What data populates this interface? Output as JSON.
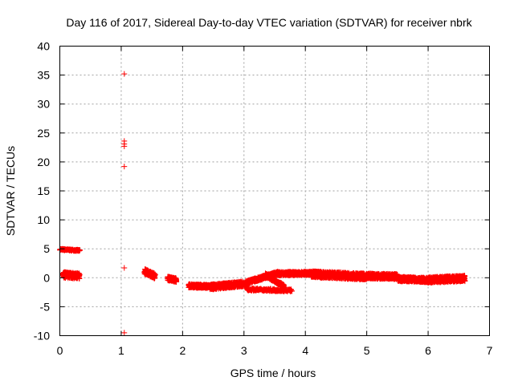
{
  "chart_data": {
    "type": "scatter",
    "title": "Day 116 of 2017, Sidereal Day-to-day VTEC variation (SDTVAR) for receiver nbrk",
    "xlabel": "GPS time / hours",
    "ylabel": "SDTVAR / TECUs",
    "xlim": [
      0,
      7
    ],
    "ylim": [
      -10,
      40
    ],
    "xticks": [
      0,
      1,
      2,
      3,
      4,
      5,
      6,
      7
    ],
    "yticks": [
      -10,
      -5,
      0,
      5,
      10,
      15,
      20,
      25,
      30,
      35,
      40
    ],
    "grid": true,
    "marker": "+",
    "color": "#ff0000",
    "outliers": [
      {
        "x": 1.05,
        "y": 35.2
      },
      {
        "x": 1.05,
        "y": 23.6
      },
      {
        "x": 1.05,
        "y": 23.1
      },
      {
        "x": 1.05,
        "y": 22.7
      },
      {
        "x": 1.05,
        "y": 19.2
      },
      {
        "x": 1.05,
        "y": 1.7
      },
      {
        "x": 1.05,
        "y": -9.5
      }
    ],
    "dense_segments": [
      {
        "x_start": 0.0,
        "x_end": 0.33,
        "y_start": 4.9,
        "y_end": 4.7,
        "spread": 0.25
      },
      {
        "x_start": 0.05,
        "x_end": 0.32,
        "y_start": 0.5,
        "y_end": 0.3,
        "spread": 1.0
      },
      {
        "x_start": 1.38,
        "x_end": 1.55,
        "y_start": 1.1,
        "y_end": 0.3,
        "spread": 0.9
      },
      {
        "x_start": 1.76,
        "x_end": 1.9,
        "y_start": -0.1,
        "y_end": -0.4,
        "spread": 0.7
      },
      {
        "x_start": 2.1,
        "x_end": 2.45,
        "y_start": -1.4,
        "y_end": -1.5,
        "spread": 0.6
      },
      {
        "x_start": 2.45,
        "x_end": 3.05,
        "y_start": -1.6,
        "y_end": -1.0,
        "spread": 0.9
      },
      {
        "x_start": 3.05,
        "x_end": 3.55,
        "y_start": -0.8,
        "y_end": 0.8,
        "spread": 0.6
      },
      {
        "x_start": 3.35,
        "x_end": 3.65,
        "y_start": 0.5,
        "y_end": -1.5,
        "spread": 0.6
      },
      {
        "x_start": 3.05,
        "x_end": 3.78,
        "y_start": -2.0,
        "y_end": -2.2,
        "spread": 0.4
      },
      {
        "x_start": 3.55,
        "x_end": 4.25,
        "y_start": 0.7,
        "y_end": 0.8,
        "spread": 0.6
      },
      {
        "x_start": 4.1,
        "x_end": 5.0,
        "y_start": 0.6,
        "y_end": 0.2,
        "spread": 1.1
      },
      {
        "x_start": 5.0,
        "x_end": 5.5,
        "y_start": 0.3,
        "y_end": 0.2,
        "spread": 0.9
      },
      {
        "x_start": 5.5,
        "x_end": 6.0,
        "y_start": -0.2,
        "y_end": -0.4,
        "spread": 0.8
      },
      {
        "x_start": 6.0,
        "x_end": 6.6,
        "y_start": -0.4,
        "y_end": -0.1,
        "spread": 1.0
      }
    ]
  }
}
